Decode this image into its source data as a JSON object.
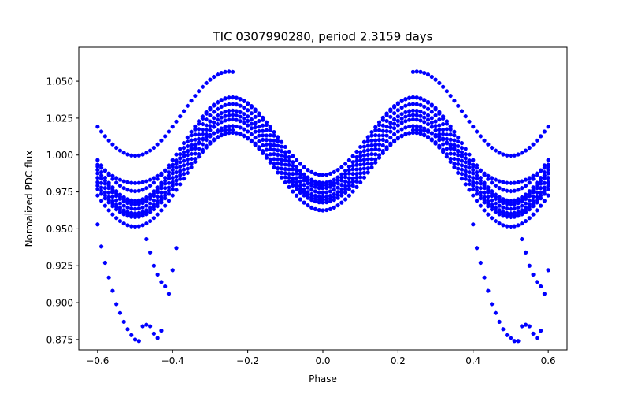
{
  "chart_data": {
    "type": "scatter",
    "title": "TIC 0307990280, period 2.3159 days",
    "xlabel": "Phase",
    "ylabel": "Normalized PDC flux",
    "xlim": [
      -0.65,
      0.65
    ],
    "ylim": [
      0.868,
      1.073
    ],
    "xticks": [
      -0.6,
      -0.4,
      -0.2,
      0.0,
      0.2,
      0.4,
      0.6
    ],
    "xtick_labels": [
      "−0.6",
      "−0.4",
      "−0.2",
      "0.0",
      "0.2",
      "0.4",
      "0.6"
    ],
    "yticks": [
      0.875,
      0.9,
      0.925,
      0.95,
      0.975,
      1.0,
      1.025,
      1.05
    ],
    "ytick_labels": [
      "0.875",
      "0.900",
      "0.925",
      "0.950",
      "0.975",
      "1.000",
      "1.025",
      "1.050"
    ],
    "grid": false,
    "legend": "none",
    "marker_color": "#0000ff",
    "phase_range": [
      -0.6,
      0.6
    ],
    "phase_step": 0.01,
    "model": {
      "baseline": 0.998,
      "amp_2phi": -0.029,
      "amp_phi": 0.0055,
      "tracks": [
        {
          "scale": 1.0,
          "offset": 0.0
        },
        {
          "scale": 1.0,
          "offset": 0.003
        },
        {
          "scale": 1.0,
          "offset": -0.003
        },
        {
          "scale": 1.05,
          "offset": 0.006
        },
        {
          "scale": 0.95,
          "offset": -0.006
        },
        {
          "scale": 1.1,
          "offset": 0.009
        },
        {
          "scale": 0.9,
          "offset": -0.009
        },
        {
          "scale": 1.0,
          "offset": -0.012
        },
        {
          "scale": 1.0,
          "offset": 0.012
        }
      ],
      "outer_tracks": [
        {
          "baseline": 1.028,
          "amp_2phi": -0.0285,
          "amp_phi": 0.0,
          "phase": [
            -0.6,
            -0.24
          ]
        },
        {
          "baseline": 1.028,
          "amp_2phi": -0.0285,
          "amp_phi": 0.0,
          "phase": [
            0.24,
            0.6
          ]
        },
        {
          "baseline": 0.999,
          "amp_2phi": -0.018,
          "amp_phi": 0.0,
          "phase": [
            -0.6,
            -0.24
          ]
        },
        {
          "baseline": 0.999,
          "amp_2phi": -0.018,
          "amp_phi": 0.0,
          "phase": [
            0.24,
            0.6
          ]
        }
      ]
    },
    "eclipse_points": [
      [
        -0.6,
        0.953
      ],
      [
        -0.59,
        0.938
      ],
      [
        -0.58,
        0.927
      ],
      [
        -0.57,
        0.917
      ],
      [
        -0.56,
        0.908
      ],
      [
        -0.55,
        0.899
      ],
      [
        -0.54,
        0.893
      ],
      [
        -0.53,
        0.887
      ],
      [
        -0.52,
        0.882
      ],
      [
        -0.51,
        0.878
      ],
      [
        -0.5,
        0.875
      ],
      [
        -0.49,
        0.874
      ],
      [
        -0.48,
        0.884
      ],
      [
        -0.47,
        0.885
      ],
      [
        -0.46,
        0.884
      ],
      [
        -0.45,
        0.879
      ],
      [
        -0.44,
        0.876
      ],
      [
        -0.43,
        0.881
      ],
      [
        -0.47,
        0.943
      ],
      [
        -0.46,
        0.934
      ],
      [
        -0.45,
        0.925
      ],
      [
        -0.44,
        0.919
      ],
      [
        -0.43,
        0.914
      ],
      [
        -0.42,
        0.911
      ],
      [
        -0.41,
        0.906
      ],
      [
        -0.4,
        0.922
      ],
      [
        -0.39,
        0.937
      ],
      [
        0.4,
        0.953
      ],
      [
        0.41,
        0.937
      ],
      [
        0.42,
        0.927
      ],
      [
        0.43,
        0.917
      ],
      [
        0.44,
        0.908
      ],
      [
        0.45,
        0.899
      ],
      [
        0.46,
        0.893
      ],
      [
        0.47,
        0.887
      ],
      [
        0.48,
        0.882
      ],
      [
        0.49,
        0.878
      ],
      [
        0.5,
        0.876
      ],
      [
        0.51,
        0.874
      ],
      [
        0.52,
        0.874
      ],
      [
        0.53,
        0.884
      ],
      [
        0.54,
        0.885
      ],
      [
        0.55,
        0.884
      ],
      [
        0.56,
        0.879
      ],
      [
        0.57,
        0.876
      ],
      [
        0.58,
        0.881
      ],
      [
        0.53,
        0.943
      ],
      [
        0.54,
        0.934
      ],
      [
        0.55,
        0.925
      ],
      [
        0.56,
        0.919
      ],
      [
        0.57,
        0.914
      ],
      [
        0.58,
        0.911
      ],
      [
        0.59,
        0.906
      ],
      [
        0.6,
        0.922
      ]
    ]
  }
}
